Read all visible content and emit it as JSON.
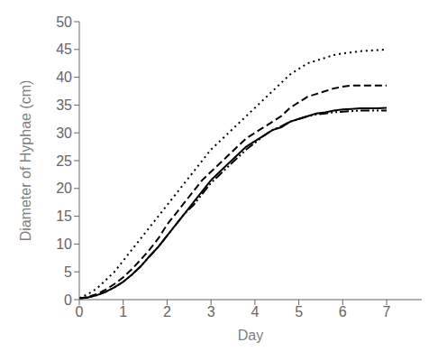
{
  "chart_data": {
    "type": "line",
    "xlabel": "Day",
    "ylabel": "Diameter of Hyphae (cm)",
    "xlim": [
      0,
      7.8
    ],
    "ylim": [
      0,
      50
    ],
    "xticks": [
      0,
      1,
      2,
      3,
      4,
      5,
      6,
      7
    ],
    "yticks": [
      0,
      5,
      10,
      15,
      20,
      25,
      30,
      35,
      40,
      45,
      50
    ],
    "grid": false,
    "x": [
      0,
      0.2,
      0.4,
      0.6,
      0.8,
      1.0,
      1.2,
      1.4,
      1.6,
      1.8,
      2.0,
      2.2,
      2.4,
      2.6,
      2.8,
      3.0,
      3.2,
      3.4,
      3.6,
      3.8,
      4.0,
      4.2,
      4.4,
      4.6,
      4.8,
      5.0,
      5.2,
      5.4,
      5.6,
      5.8,
      6.0,
      6.2,
      6.4,
      6.6,
      6.8,
      7.0
    ],
    "series": [
      {
        "color": "#000000",
        "line_style": "dotted",
        "values": [
          0.3,
          1.0,
          2.0,
          3.5,
          5.0,
          7.0,
          9.0,
          11.0,
          13.0,
          15.0,
          17.0,
          19.0,
          21.0,
          23.0,
          25.0,
          27.0,
          28.5,
          30.0,
          31.5,
          33.0,
          34.5,
          36.0,
          37.5,
          39.0,
          40.5,
          41.5,
          42.5,
          43.0,
          43.5,
          44.0,
          44.3,
          44.5,
          44.7,
          44.8,
          44.9,
          45.0
        ]
      },
      {
        "color": "#000000",
        "line_style": "dashed",
        "values": [
          0.2,
          0.5,
          1.0,
          1.8,
          2.8,
          4.0,
          5.5,
          7.2,
          9.0,
          11.0,
          13.5,
          15.5,
          17.5,
          19.5,
          21.5,
          23.0,
          24.5,
          26.0,
          27.5,
          29.0,
          30.0,
          31.0,
          32.0,
          33.0,
          34.5,
          35.5,
          36.5,
          37.0,
          37.5,
          38.0,
          38.3,
          38.5,
          38.5,
          38.5,
          38.5,
          38.5
        ]
      },
      {
        "color": "#000000",
        "line_style": "solid",
        "values": [
          0.2,
          0.4,
          0.8,
          1.4,
          2.2,
          3.2,
          4.5,
          6.0,
          7.8,
          9.5,
          11.5,
          13.5,
          15.5,
          17.5,
          19.5,
          21.5,
          23.0,
          24.5,
          26.0,
          27.5,
          28.5,
          29.5,
          30.5,
          31.0,
          32.0,
          32.5,
          33.0,
          33.5,
          33.7,
          34.0,
          34.2,
          34.3,
          34.4,
          34.4,
          34.4,
          34.5
        ]
      },
      {
        "color": "#000000",
        "line_style": "dashdotdot",
        "values": [
          0.2,
          0.4,
          0.8,
          1.4,
          2.2,
          3.2,
          4.5,
          6.0,
          7.8,
          9.5,
          11.5,
          13.5,
          15.5,
          17.0,
          19.0,
          21.0,
          22.5,
          24.0,
          25.5,
          27.0,
          28.2,
          29.5,
          30.5,
          31.2,
          32.0,
          32.5,
          33.0,
          33.3,
          33.5,
          33.7,
          33.8,
          33.9,
          34.0,
          34.0,
          34.0,
          34.0
        ]
      }
    ]
  }
}
